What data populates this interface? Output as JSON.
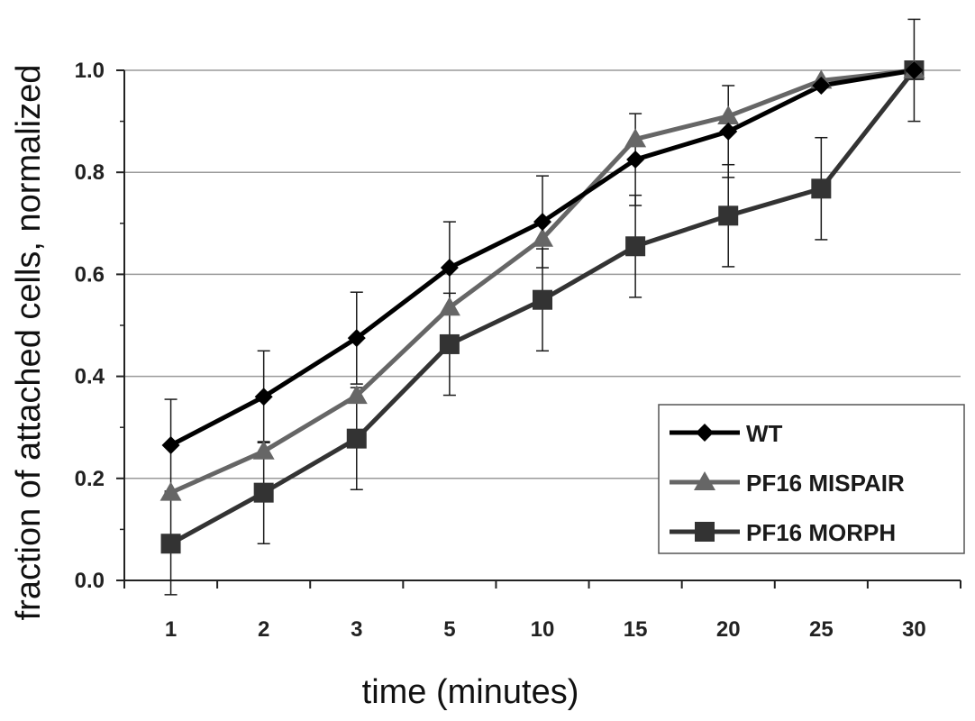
{
  "chart_data": {
    "type": "line",
    "title": "",
    "xlabel": "time (minutes)",
    "ylabel": "fraction of attached cells, normalized",
    "categories": [
      "1",
      "2",
      "3",
      "5",
      "10",
      "15",
      "20",
      "25",
      "30"
    ],
    "ylim": [
      0,
      1
    ],
    "yticks": [
      "0.0",
      "0.2",
      "0.4",
      "0.6",
      "0.8",
      "1.0"
    ],
    "grid": true,
    "legend_position": "bottom-right",
    "series": [
      {
        "name": "WT",
        "color": "#000000",
        "marker": "diamond",
        "values": [
          0.265,
          0.36,
          0.475,
          0.613,
          0.703,
          0.825,
          0.88,
          0.97,
          1.0
        ],
        "errors": [
          0.09,
          0.09,
          0.09,
          0.09,
          0.09,
          0.09,
          0.09,
          0.0,
          0.0
        ]
      },
      {
        "name": "PF16 MISPAIR",
        "color": "#666666",
        "marker": "triangle",
        "values": [
          0.172,
          0.253,
          0.362,
          0.535,
          0.67,
          0.865,
          0.91,
          0.98,
          1.0
        ],
        "errors": [
          0.0,
          0.0,
          0.0,
          0.0,
          0.0,
          0.0,
          0.0,
          0.0,
          0.0
        ]
      },
      {
        "name": "PF16 MORPH",
        "color": "#333333",
        "marker": "square",
        "values": [
          0.072,
          0.172,
          0.278,
          0.463,
          0.55,
          0.655,
          0.715,
          0.768,
          1.0
        ],
        "errors": [
          0.1,
          0.1,
          0.1,
          0.1,
          0.1,
          0.1,
          0.1,
          0.1,
          0.1
        ]
      }
    ]
  }
}
